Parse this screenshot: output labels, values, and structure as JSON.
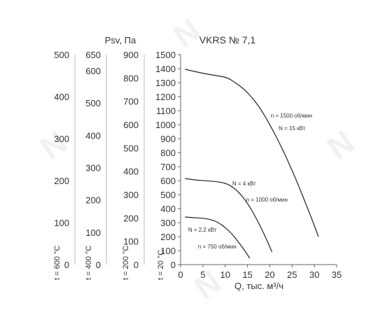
{
  "chart_data": {
    "type": "line",
    "title": "VKRS № 7,1",
    "ylabel": "Psv, Па",
    "xlabel": "Q, тыс. м³/ч",
    "xlim": [
      0,
      35
    ],
    "xticks": [
      0,
      5,
      10,
      15,
      20,
      25,
      30,
      35
    ],
    "ylim": [
      0,
      1500
    ],
    "yticks": [
      0,
      100,
      200,
      300,
      400,
      500,
      600,
      700,
      800,
      900,
      1000,
      1100,
      1200,
      1300,
      1400,
      1500
    ],
    "grid": false,
    "temperature_axes": [
      {
        "label": "t = 600 °C",
        "ticks": [
          0,
          100,
          200,
          300,
          400,
          500
        ],
        "max": 500
      },
      {
        "label": "t = 400 °C",
        "ticks": [
          0,
          100,
          200,
          300,
          400,
          500,
          600,
          650
        ],
        "max": 650
      },
      {
        "label": "t = 200 °C",
        "ticks": [
          0,
          100,
          200,
          300,
          400,
          500,
          600,
          700,
          800,
          900
        ],
        "max": 900
      },
      {
        "label": "t = 20 °C",
        "ticks": [],
        "max": 1500
      }
    ],
    "series": [
      {
        "x": [
          1,
          3,
          6,
          9,
          10.5,
          12,
          14,
          16,
          18,
          20,
          22,
          24,
          26,
          28,
          29.5,
          30.9
        ],
        "y": [
          1395,
          1380,
          1360,
          1345,
          1335,
          1305,
          1260,
          1195,
          1110,
          1000,
          880,
          745,
          600,
          440,
          320,
          200
        ]
      },
      {
        "x": [
          1,
          3,
          6,
          9,
          11,
          13,
          15,
          17,
          19,
          20.5
        ],
        "y": [
          615,
          605,
          598,
          590,
          570,
          520,
          440,
          330,
          200,
          90
        ]
      },
      {
        "x": [
          1,
          3,
          5,
          7,
          8.5,
          10,
          11.5,
          13,
          14.5,
          15.5
        ],
        "y": [
          340,
          335,
          332,
          320,
          300,
          265,
          220,
          160,
          95,
          45
        ]
      }
    ],
    "annotations": [
      {
        "text": "n = 1500 об/мин",
        "x": 20.2,
        "y": 1050
      },
      {
        "text": "N = 15 кВт",
        "x": 22,
        "y": 960
      },
      {
        "text": "N = 4 кВт",
        "x": 11.6,
        "y": 565
      },
      {
        "text": "n = 1000 об/мин",
        "x": 14.7,
        "y": 450
      },
      {
        "text": "N = 2,2 кВт",
        "x": 1.7,
        "y": 235
      },
      {
        "text": "n = 750 об/мин",
        "x": 3.9,
        "y": 115
      }
    ]
  }
}
